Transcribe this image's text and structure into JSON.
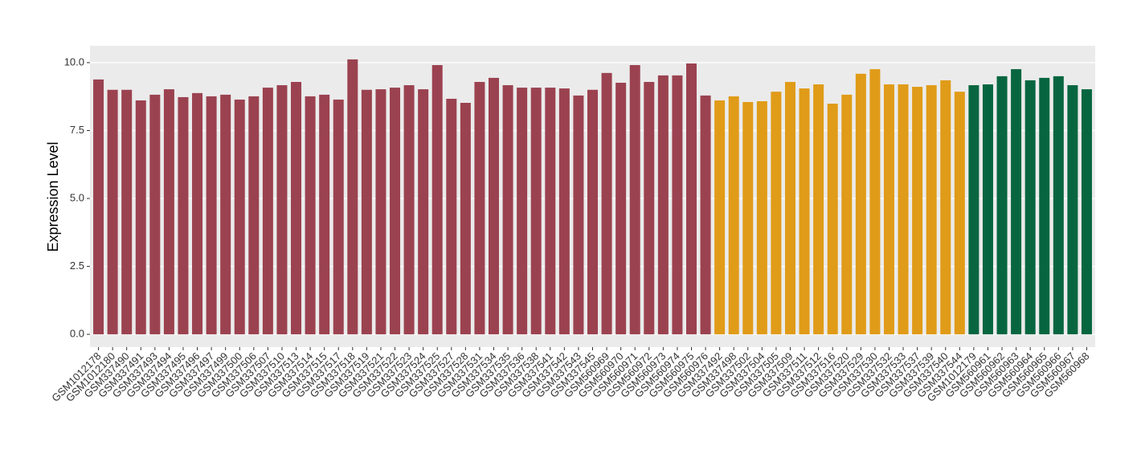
{
  "chart_data": {
    "type": "bar",
    "y_label": "Expression Level",
    "ylim": [
      -0.47,
      10.62
    ],
    "yticks": [
      {
        "value": 0,
        "label": "0.0"
      },
      2.5,
      {
        "value": 5,
        "label": "5.0"
      },
      7.5,
      {
        "value": 10,
        "label": "10.0"
      }
    ],
    "grid": true,
    "groups": [
      {
        "color": "#9b4250",
        "categories": [
          "GSM1012178",
          "GSM1012180",
          "GSM337490",
          "GSM337491",
          "GSM337493",
          "GSM337494",
          "GSM337495",
          "GSM337496",
          "GSM337497",
          "GSM337499",
          "GSM337500",
          "GSM337506",
          "GSM337507",
          "GSM337510",
          "GSM337513",
          "GSM337514",
          "GSM337515",
          "GSM337517",
          "GSM337518",
          "GSM337519",
          "GSM337521",
          "GSM337522",
          "GSM337523",
          "GSM337524",
          "GSM337525",
          "GSM337527",
          "GSM337528",
          "GSM337531",
          "GSM337534",
          "GSM337535",
          "GSM337536",
          "GSM337538",
          "GSM337541",
          "GSM337542",
          "GSM337543",
          "GSM337545",
          "GSM560969",
          "GSM560970",
          "GSM560971",
          "GSM560972",
          "GSM560973",
          "GSM560974",
          "GSM560975",
          "GSM560976"
        ],
        "values": [
          9.38,
          9.0,
          9.0,
          8.61,
          8.82,
          9.02,
          8.73,
          8.88,
          8.76,
          8.82,
          8.64,
          8.76,
          9.08,
          9.17,
          9.29,
          8.76,
          8.82,
          8.64,
          10.12,
          9.0,
          9.02,
          9.08,
          9.17,
          9.02,
          9.91,
          8.67,
          8.52,
          9.29,
          9.44,
          9.17,
          9.08,
          9.08,
          9.08,
          9.05,
          8.79,
          9.0,
          9.62,
          9.26,
          9.91,
          9.29,
          9.53,
          9.53,
          9.97,
          8.79
        ]
      },
      {
        "color": "#e09b18",
        "categories": [
          "GSM337492",
          "GSM337498",
          "GSM337502",
          "GSM337504",
          "GSM337505",
          "GSM337509",
          "GSM337511",
          "GSM337512",
          "GSM337516",
          "GSM337520",
          "GSM337529",
          "GSM337530",
          "GSM337532",
          "GSM337533",
          "GSM337537",
          "GSM337539",
          "GSM337540",
          "GSM337544"
        ],
        "values": [
          8.61,
          8.76,
          8.55,
          8.58,
          8.93,
          9.29,
          9.05,
          9.2,
          8.49,
          8.82,
          9.59,
          9.76,
          9.2,
          9.2,
          9.11,
          9.17,
          9.35,
          8.93
        ]
      },
      {
        "color": "#076640",
        "categories": [
          "GSM1012179",
          "GSM560961",
          "GSM560962",
          "GSM560963",
          "GSM560964",
          "GSM560965",
          "GSM560966",
          "GSM560967",
          "GSM560968"
        ],
        "values": [
          9.17,
          9.2,
          9.5,
          9.76,
          9.35,
          9.44,
          9.5,
          9.17,
          9.02
        ]
      }
    ]
  }
}
